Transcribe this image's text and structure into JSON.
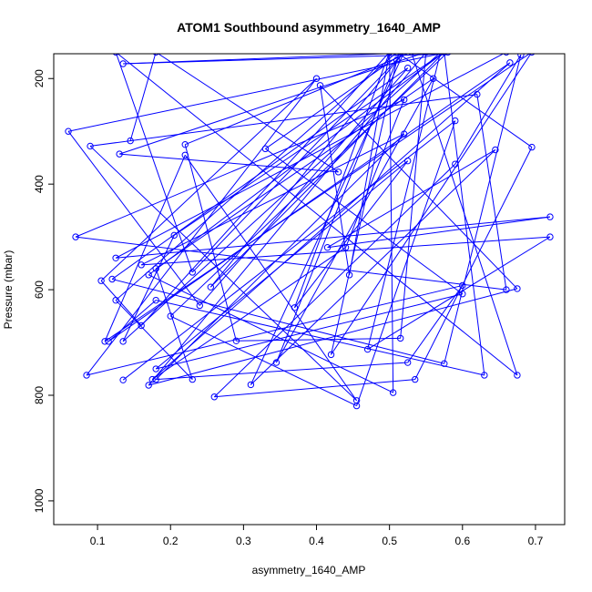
{
  "chart_data": {
    "type": "line",
    "title": "ATOM1 Southbound asymmetry_1640_AMP",
    "xlabel": "asymmetry_1640_AMP",
    "ylabel": "Pressure (mbar)",
    "xlim": [
      0.04,
      0.74
    ],
    "ylim": [
      1045,
      153
    ],
    "y_reversed": true,
    "grid": false,
    "x_ticks": [
      "0.1",
      "0.2",
      "0.3",
      "0.4",
      "0.5",
      "0.6",
      "0.7"
    ],
    "y_ticks": [
      "200",
      "400",
      "600",
      "800",
      "1000"
    ],
    "series": [
      {
        "color": "#0000ff",
        "marker": "open-circle",
        "points": [
          [
            0.135,
            771
          ],
          [
            0.59,
            280
          ],
          [
            0.455,
            820
          ],
          [
            0.2,
            650
          ],
          [
            0.58,
            150
          ],
          [
            0.06,
            300
          ],
          [
            0.24,
            630
          ],
          [
            0.525,
            180
          ],
          [
            0.12,
            580
          ],
          [
            0.575,
            740
          ],
          [
            0.68,
            155
          ],
          [
            0.59,
            362
          ],
          [
            0.26,
            803
          ],
          [
            0.535,
            770
          ],
          [
            0.695,
            330
          ],
          [
            0.51,
            150
          ],
          [
            0.125,
            620
          ],
          [
            0.23,
            770
          ],
          [
            0.18,
            560
          ],
          [
            0.56,
            200
          ],
          [
            0.345,
            738
          ],
          [
            0.51,
            165
          ],
          [
            0.42,
            723
          ],
          [
            0.695,
            150
          ],
          [
            0.11,
            698
          ],
          [
            0.22,
            345
          ],
          [
            0.455,
            810
          ],
          [
            0.09,
            328
          ],
          [
            0.62,
            230
          ],
          [
            0.66,
            600
          ],
          [
            0.07,
            500
          ],
          [
            0.52,
            240
          ],
          [
            0.44,
            520
          ],
          [
            0.175,
            770
          ],
          [
            0.665,
            170
          ],
          [
            0.115,
            698
          ],
          [
            0.18,
            620
          ],
          [
            0.63,
            762
          ],
          [
            0.575,
            150
          ],
          [
            0.17,
            572
          ],
          [
            0.505,
            795
          ],
          [
            0.5,
            150
          ],
          [
            0.16,
            668
          ],
          [
            0.105,
            583
          ],
          [
            0.4,
            200
          ],
          [
            0.085,
            762
          ],
          [
            0.6,
            592
          ],
          [
            0.525,
            738
          ],
          [
            0.18,
            770
          ],
          [
            0.52,
            305
          ],
          [
            0.16,
            553
          ],
          [
            0.72,
            500
          ],
          [
            0.47,
            713
          ],
          [
            0.57,
            150
          ],
          [
            0.135,
            698
          ],
          [
            0.205,
            497
          ],
          [
            0.575,
            150
          ],
          [
            0.255,
            595
          ],
          [
            0.52,
            150
          ],
          [
            0.31,
            780
          ],
          [
            0.645,
            335
          ],
          [
            0.415,
            520
          ],
          [
            0.72,
            462
          ],
          [
            0.125,
            540
          ],
          [
            0.66,
            150
          ],
          [
            0.135,
            172
          ],
          [
            0.55,
            150
          ],
          [
            0.17,
            781
          ],
          [
            0.675,
            598
          ],
          [
            0.405,
            213
          ],
          [
            0.445,
            572
          ],
          [
            0.5,
            150
          ],
          [
            0.37,
            634
          ],
          [
            0.525,
            356
          ],
          [
            0.18,
            750
          ],
          [
            0.6,
            608
          ],
          [
            0.33,
            333
          ],
          [
            0.52,
            150
          ],
          [
            0.23,
            567
          ],
          [
            0.125,
            150
          ],
          [
            0.675,
            762
          ],
          [
            0.53,
            150
          ],
          [
            0.22,
            325
          ],
          [
            0.29,
            697
          ],
          [
            0.515,
            692
          ],
          [
            0.55,
            150
          ],
          [
            0.13,
            343
          ],
          [
            0.43,
            377
          ],
          [
            0.18,
            150
          ],
          [
            0.145,
            318
          ]
        ]
      }
    ]
  }
}
